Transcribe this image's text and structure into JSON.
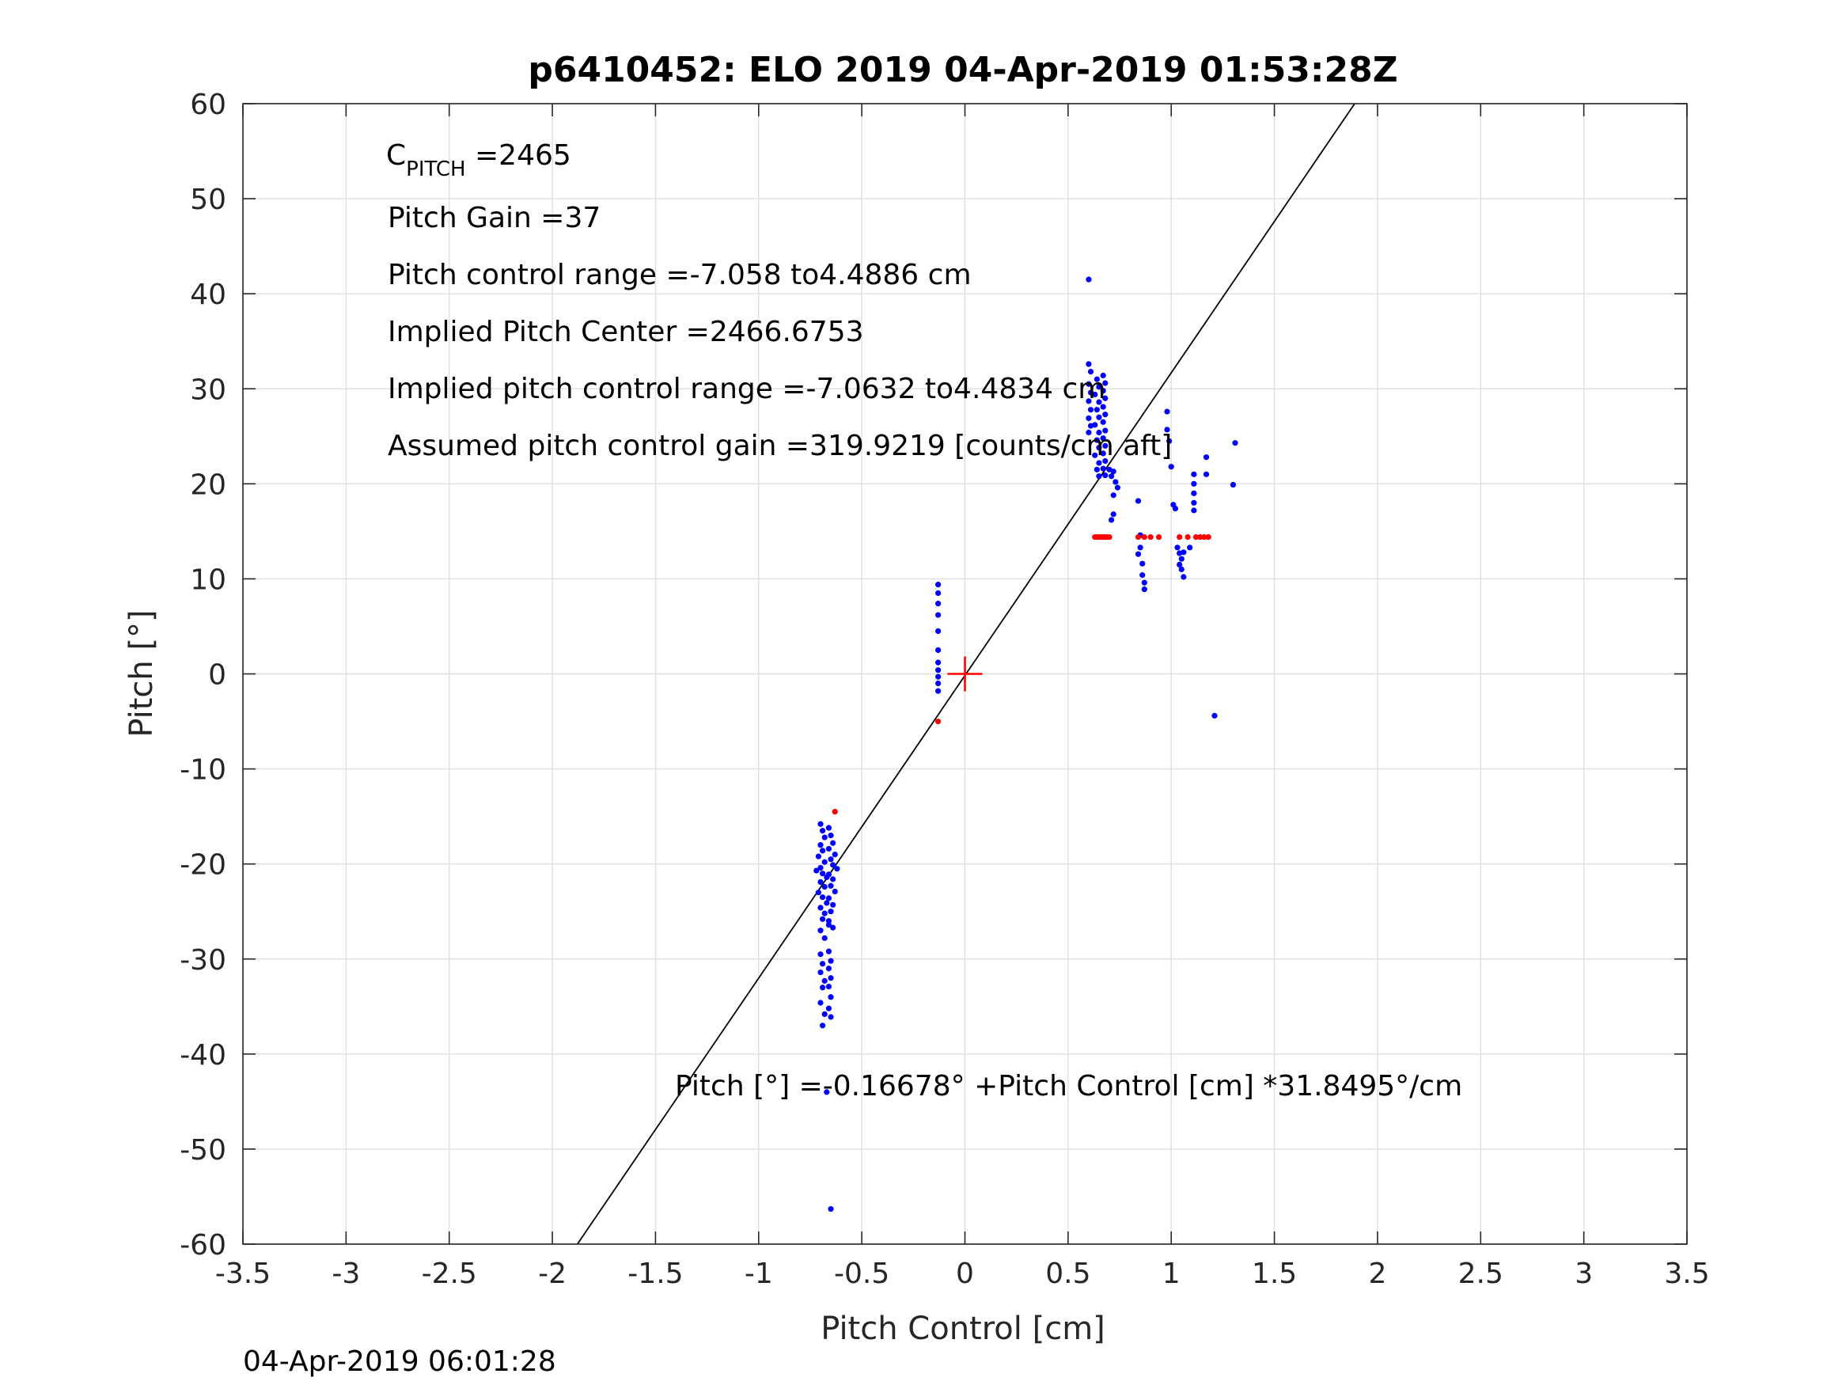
{
  "chart_data": {
    "type": "scatter",
    "title": "p6410452: ELO 2019 04-Apr-2019 01:53:28Z",
    "xlabel": "Pitch Control [cm]",
    "ylabel": "Pitch [°]",
    "xlim": [
      -3.5,
      3.5
    ],
    "ylim": [
      -60,
      60
    ],
    "xticks": [
      -3.5,
      -3,
      -2.5,
      -2,
      -1.5,
      -1,
      -0.5,
      0,
      0.5,
      1,
      1.5,
      2,
      2.5,
      3,
      3.5
    ],
    "xtick_labels": [
      "-3.5",
      "-3",
      "-2.5",
      "-2",
      "-1.5",
      "-1",
      "-0.5",
      "0",
      "0.5",
      "1",
      "1.5",
      "2",
      "2.5",
      "3",
      "3.5"
    ],
    "yticks": [
      -60,
      -50,
      -40,
      -30,
      -20,
      -10,
      0,
      10,
      20,
      30,
      40,
      50,
      60
    ],
    "ytick_labels": [
      "-60",
      "-50",
      "-40",
      "-30",
      "-20",
      "-10",
      "0",
      "10",
      "20",
      "30",
      "40",
      "50",
      "60"
    ],
    "grid": true,
    "annotations": {
      "cpitch_main": "C",
      "cpitch_sub": "PITCH",
      "cpitch_value": " =2465",
      "pitch_gain": "Pitch Gain =37",
      "pitch_control_range": "Pitch control range =-7.058 to4.4886 cm",
      "implied_center": "Implied Pitch Center =2466.6753",
      "implied_range": "Implied pitch control range =-7.0632 to4.4834 cm",
      "assumed_gain": "Assumed pitch control gain =319.9219 [counts/cm aft]",
      "fit_equation": "Pitch [°] =-0.16678° +Pitch Control [cm] *31.8495°/cm"
    },
    "fit_line": {
      "intercept": -0.16678,
      "slope": 31.8495,
      "color": "#000000"
    },
    "center_marker": {
      "x": 0,
      "y": 0,
      "color": "#ff0000"
    },
    "series": [
      {
        "color": "#0000ff",
        "points": [
          [
            -0.7,
            -15.8
          ],
          [
            -0.69,
            -16.5
          ],
          [
            -0.68,
            -17.2
          ],
          [
            -0.7,
            -18.0
          ],
          [
            -0.69,
            -18.6
          ],
          [
            -0.71,
            -19.2
          ],
          [
            -0.68,
            -19.8
          ],
          [
            -0.7,
            -20.4
          ],
          [
            -0.72,
            -20.7
          ],
          [
            -0.69,
            -21.0
          ],
          [
            -0.67,
            -21.4
          ],
          [
            -0.7,
            -21.9
          ],
          [
            -0.68,
            -22.4
          ],
          [
            -0.71,
            -23.0
          ],
          [
            -0.69,
            -23.5
          ],
          [
            -0.67,
            -24.1
          ],
          [
            -0.7,
            -24.6
          ],
          [
            -0.68,
            -25.2
          ],
          [
            -0.69,
            -25.8
          ],
          [
            -0.66,
            -26.4
          ],
          [
            -0.7,
            -27.0
          ],
          [
            -0.68,
            -27.8
          ],
          [
            -0.66,
            -16.2
          ],
          [
            -0.65,
            -17.0
          ],
          [
            -0.64,
            -17.8
          ],
          [
            -0.66,
            -18.4
          ],
          [
            -0.63,
            -19.0
          ],
          [
            -0.65,
            -19.5
          ],
          [
            -0.64,
            -20.1
          ],
          [
            -0.62,
            -20.5
          ],
          [
            -0.66,
            -21.1
          ],
          [
            -0.64,
            -21.6
          ],
          [
            -0.65,
            -22.3
          ],
          [
            -0.63,
            -22.9
          ],
          [
            -0.66,
            -23.6
          ],
          [
            -0.64,
            -24.3
          ],
          [
            -0.65,
            -25.0
          ],
          [
            -0.66,
            -26.0
          ],
          [
            -0.64,
            -26.7
          ],
          [
            -0.7,
            -29.5
          ],
          [
            -0.69,
            -30.5
          ],
          [
            -0.7,
            -31.4
          ],
          [
            -0.68,
            -32.3
          ],
          [
            -0.69,
            -33.0
          ],
          [
            -0.7,
            -34.6
          ],
          [
            -0.68,
            -35.8
          ],
          [
            -0.69,
            -37.0
          ],
          [
            -0.66,
            -29.2
          ],
          [
            -0.65,
            -30.2
          ],
          [
            -0.66,
            -31.0
          ],
          [
            -0.65,
            -32.0
          ],
          [
            -0.66,
            -32.9
          ],
          [
            -0.65,
            -34.0
          ],
          [
            -0.66,
            -35.2
          ],
          [
            -0.65,
            -36.1
          ],
          [
            -0.67,
            -44.0
          ],
          [
            -0.65,
            -56.3
          ],
          [
            -0.13,
            9.4
          ],
          [
            -0.13,
            8.5
          ],
          [
            -0.13,
            7.4
          ],
          [
            -0.13,
            6.2
          ],
          [
            -0.13,
            4.5
          ],
          [
            -0.13,
            2.5
          ],
          [
            -0.13,
            1.2
          ],
          [
            -0.13,
            0.4
          ],
          [
            -0.13,
            -0.3
          ],
          [
            -0.13,
            -1.0
          ],
          [
            -0.13,
            -1.8
          ],
          [
            0.6,
            41.5
          ],
          [
            0.6,
            32.6
          ],
          [
            0.61,
            31.8
          ],
          [
            0.6,
            30.5
          ],
          [
            0.61,
            29.6
          ],
          [
            0.6,
            28.7
          ],
          [
            0.61,
            27.8
          ],
          [
            0.6,
            26.9
          ],
          [
            0.61,
            26.1
          ],
          [
            0.6,
            25.4
          ],
          [
            0.64,
            31.0
          ],
          [
            0.65,
            30.2
          ],
          [
            0.63,
            29.4
          ],
          [
            0.65,
            28.6
          ],
          [
            0.64,
            27.8
          ],
          [
            0.65,
            27.0
          ],
          [
            0.63,
            26.2
          ],
          [
            0.65,
            25.4
          ],
          [
            0.64,
            24.6
          ],
          [
            0.65,
            23.8
          ],
          [
            0.63,
            23.0
          ],
          [
            0.65,
            22.2
          ],
          [
            0.64,
            21.5
          ],
          [
            0.65,
            20.8
          ],
          [
            0.67,
            31.4
          ],
          [
            0.68,
            30.6
          ],
          [
            0.67,
            29.8
          ],
          [
            0.68,
            29.0
          ],
          [
            0.67,
            28.1
          ],
          [
            0.68,
            27.3
          ],
          [
            0.67,
            26.5
          ],
          [
            0.68,
            25.6
          ],
          [
            0.67,
            24.8
          ],
          [
            0.68,
            24.0
          ],
          [
            0.67,
            23.2
          ],
          [
            0.68,
            22.4
          ],
          [
            0.67,
            21.6
          ],
          [
            0.68,
            20.9
          ],
          [
            0.7,
            21.5
          ],
          [
            0.71,
            20.8
          ],
          [
            0.72,
            21.3
          ],
          [
            0.73,
            20.2
          ],
          [
            0.74,
            19.6
          ],
          [
            0.72,
            18.8
          ],
          [
            0.71,
            16.2
          ],
          [
            0.72,
            16.8
          ],
          [
            0.84,
            18.2
          ],
          [
            0.85,
            14.6
          ],
          [
            0.85,
            13.3
          ],
          [
            0.84,
            12.6
          ],
          [
            0.86,
            11.6
          ],
          [
            0.86,
            10.4
          ],
          [
            0.87,
            9.6
          ],
          [
            0.87,
            8.9
          ],
          [
            0.98,
            27.6
          ],
          [
            0.98,
            25.7
          ],
          [
            0.99,
            24.5
          ],
          [
            1.0,
            21.8
          ],
          [
            1.01,
            17.8
          ],
          [
            1.02,
            17.4
          ],
          [
            1.03,
            13.3
          ],
          [
            1.04,
            12.7
          ],
          [
            1.05,
            12.1
          ],
          [
            1.04,
            11.5
          ],
          [
            1.05,
            11.0
          ],
          [
            1.06,
            10.2
          ],
          [
            1.06,
            12.8
          ],
          [
            1.09,
            13.3
          ],
          [
            1.11,
            21.0
          ],
          [
            1.11,
            20.0
          ],
          [
            1.11,
            19.0
          ],
          [
            1.11,
            18.0
          ],
          [
            1.11,
            17.2
          ],
          [
            1.17,
            22.8
          ],
          [
            1.17,
            21.0
          ],
          [
            1.21,
            -4.4
          ],
          [
            1.3,
            19.9
          ],
          [
            1.31,
            24.3
          ]
        ]
      },
      {
        "color": "#ff0000",
        "points": [
          [
            -0.13,
            -5.0
          ],
          [
            -0.63,
            -14.5
          ],
          [
            0.63,
            14.4
          ],
          [
            0.64,
            14.4
          ],
          [
            0.65,
            14.4
          ],
          [
            0.66,
            14.4
          ],
          [
            0.67,
            14.4
          ],
          [
            0.68,
            14.4
          ],
          [
            0.69,
            14.4
          ],
          [
            0.7,
            14.4
          ],
          [
            0.84,
            14.4
          ],
          [
            0.87,
            14.4
          ],
          [
            0.9,
            14.4
          ],
          [
            0.94,
            14.4
          ],
          [
            1.04,
            14.4
          ],
          [
            1.08,
            14.4
          ],
          [
            1.12,
            14.4
          ],
          [
            1.14,
            14.4
          ],
          [
            1.16,
            14.4
          ],
          [
            1.18,
            14.4
          ]
        ]
      }
    ]
  },
  "footer": {
    "timestamp": "04-Apr-2019 06:01:28"
  }
}
